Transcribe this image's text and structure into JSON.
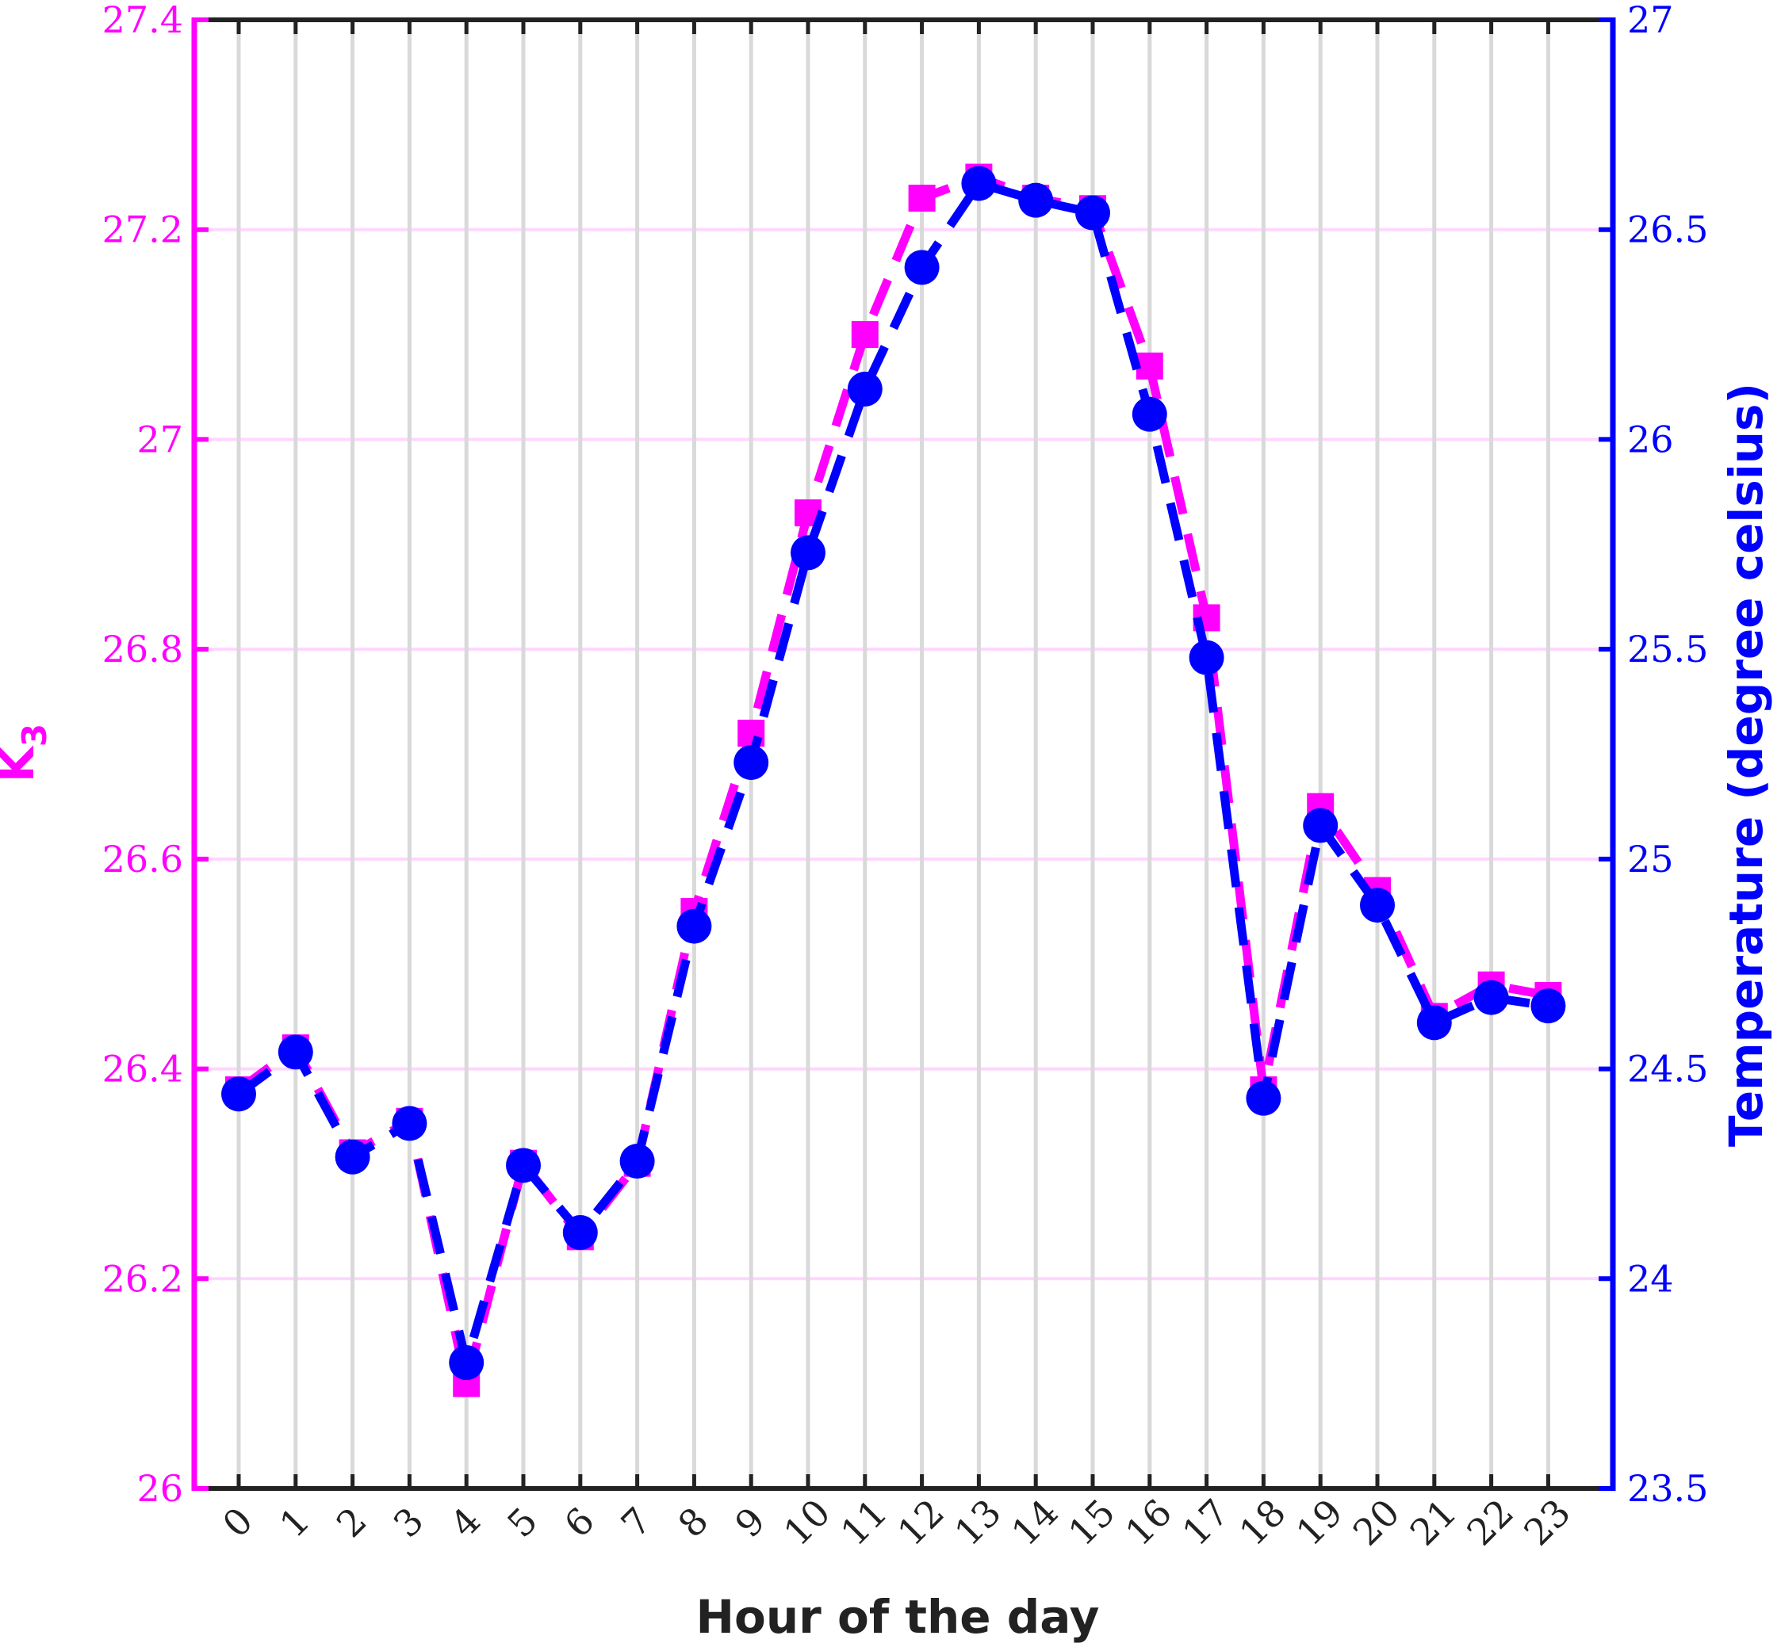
{
  "chart_data": {
    "type": "line",
    "xlabel": "Hour of the day",
    "ylabel_left": "K",
    "ylabel_left_subscript": "3",
    "ylabel_right": "Temperature (degree celsius)",
    "categories": [
      "0",
      "1",
      "2",
      "3",
      "4",
      "5",
      "6",
      "7",
      "8",
      "9",
      "10",
      "11",
      "12",
      "13",
      "14",
      "15",
      "16",
      "17",
      "18",
      "19",
      "20",
      "21",
      "22",
      "23"
    ],
    "ylim_left": [
      26,
      27.4
    ],
    "ylim_right": [
      23.5,
      27
    ],
    "yticks_left": [
      "26",
      "26.2",
      "26.4",
      "26.6",
      "26.8",
      "27",
      "27.2",
      "27.4"
    ],
    "yticks_right": [
      "23.5",
      "24",
      "24.5",
      "25",
      "25.5",
      "26",
      "26.5",
      "27"
    ],
    "grid": "on",
    "legend": "none",
    "series": [
      {
        "axis": "left",
        "color": "#ff00ff",
        "marker": "square",
        "linestyle": "dashed",
        "values": [
          26.38,
          26.42,
          26.32,
          26.35,
          26.1,
          26.31,
          26.24,
          26.31,
          26.55,
          26.72,
          26.93,
          27.1,
          27.23,
          27.25,
          27.23,
          27.22,
          27.07,
          26.83,
          26.38,
          26.65,
          26.57,
          26.45,
          26.48,
          26.47
        ]
      },
      {
        "axis": "right",
        "color": "#0000ff",
        "marker": "circle",
        "linestyle": "dashed",
        "values": [
          24.44,
          24.54,
          24.29,
          24.37,
          23.8,
          24.27,
          24.11,
          24.28,
          24.84,
          25.23,
          25.73,
          26.12,
          26.41,
          26.61,
          26.57,
          26.54,
          26.06,
          25.48,
          24.43,
          25.08,
          24.89,
          24.61,
          24.67,
          24.65
        ]
      }
    ],
    "colors": {
      "left_axis": "#ff00ff",
      "right_axis": "#0000ff",
      "frame": "#222222",
      "vgrid": "#d9d9d9",
      "hgrid": "#ffd6ff"
    }
  }
}
